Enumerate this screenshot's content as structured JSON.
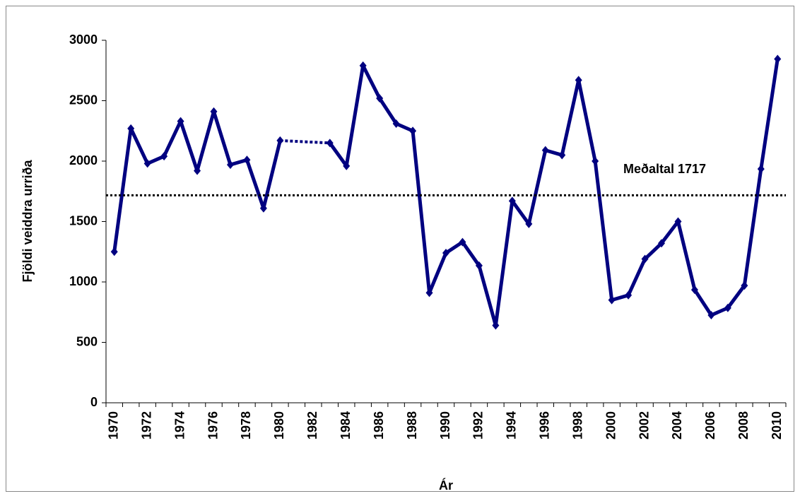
{
  "chart_data": {
    "type": "line",
    "x_label": "Ár",
    "y_label": "Fjöldi veiddra urriða",
    "categories": [
      "1970",
      null,
      "1972",
      null,
      "1974",
      null,
      "1976",
      null,
      "1978",
      null,
      "1980",
      null,
      "1982",
      null,
      "1984",
      null,
      "1986",
      null,
      "1988",
      null,
      "1990",
      null,
      "1992",
      null,
      "1994",
      null,
      "1996",
      null,
      "1998",
      null,
      "2000",
      null,
      "2002",
      null,
      "2004",
      null,
      "2006",
      null,
      "2008",
      null,
      "2010"
    ],
    "series": [
      {
        "color": "#000080",
        "values": [
          1250,
          2270,
          1980,
          2040,
          2330,
          1920,
          2410,
          1970,
          2010,
          1610,
          2170,
          null,
          null,
          2150,
          1960,
          2790,
          2520,
          2310,
          2250,
          910,
          1240,
          1330,
          1135,
          640,
          1670,
          1480,
          2090,
          2050,
          2670,
          2000,
          850,
          890,
          1190,
          1320,
          1500,
          935,
          725,
          785,
          970,
          1935,
          2845
        ]
      }
    ],
    "mean": {
      "value": 1717,
      "label": "Meðaltal 1717"
    },
    "ylim": [
      0,
      3000
    ],
    "yticks": [
      0,
      500,
      1000,
      1500,
      2000,
      2500,
      3000
    ]
  }
}
